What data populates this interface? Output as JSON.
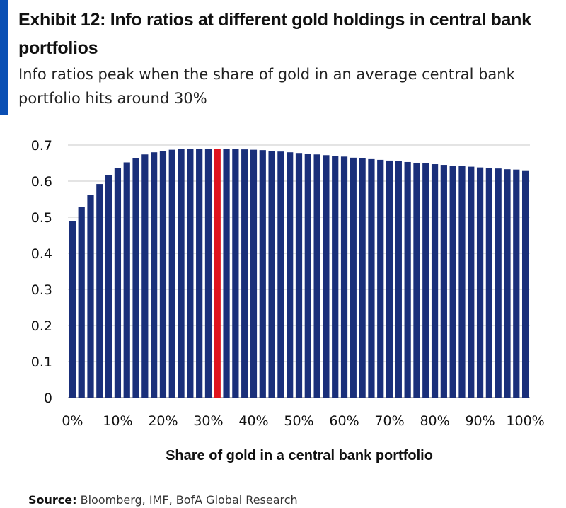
{
  "header": {
    "title": "Exhibit 12: Info ratios at different gold holdings in central bank portfolios",
    "subtitle": "Info ratios peak when the share of gold in an average central bank portfolio hits around 30%"
  },
  "footer": {
    "source_label": "Source:",
    "source_text": "Bloomberg, IMF, BofA Global Research"
  },
  "colors": {
    "accent": "#0a4fb4",
    "bar": "#1a2f7a",
    "highlight": "#e0141e",
    "grid": "#c8c8c8"
  },
  "chart_data": {
    "type": "bar",
    "xlabel": "Share of gold in a central bank portfolio",
    "ylabel": "",
    "ylim": [
      0,
      0.7
    ],
    "yticks": [
      "0",
      "0.1",
      "0.2",
      "0.3",
      "0.4",
      "0.5",
      "0.6",
      "0.7"
    ],
    "xtick_labels": [
      "0%",
      "10%",
      "20%",
      "30%",
      "40%",
      "50%",
      "60%",
      "70%",
      "80%",
      "90%",
      "100%"
    ],
    "highlight_index": 16,
    "grid": "horizontal",
    "values": [
      0.49,
      0.528,
      0.562,
      0.592,
      0.617,
      0.636,
      0.652,
      0.664,
      0.674,
      0.68,
      0.684,
      0.687,
      0.689,
      0.69,
      0.69,
      0.69,
      0.69,
      0.69,
      0.689,
      0.688,
      0.687,
      0.686,
      0.684,
      0.682,
      0.68,
      0.678,
      0.676,
      0.674,
      0.672,
      0.67,
      0.668,
      0.665,
      0.663,
      0.661,
      0.659,
      0.657,
      0.655,
      0.653,
      0.651,
      0.649,
      0.647,
      0.645,
      0.643,
      0.642,
      0.64,
      0.638,
      0.636,
      0.635,
      0.633,
      0.632,
      0.63
    ]
  }
}
